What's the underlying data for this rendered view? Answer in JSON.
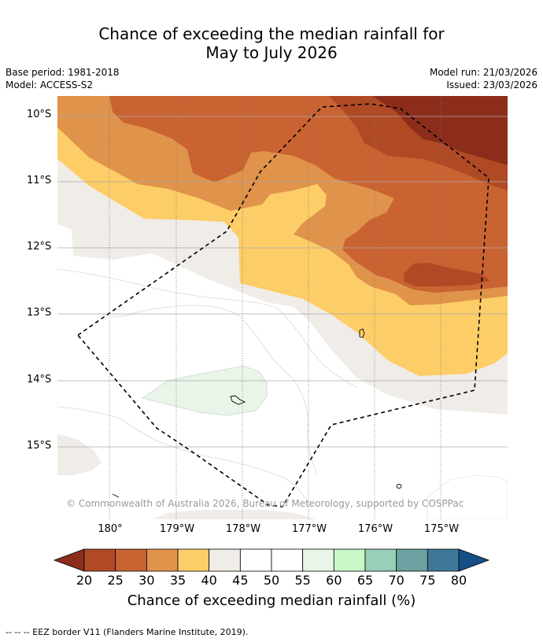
{
  "title_line1": "Chance of exceeding the median rainfall for",
  "title_line2": "May to July 2026",
  "meta": {
    "base_period": "Base period: 1981-2018",
    "model": "Model: ACCESS-S2",
    "model_run": "Model run: 21/03/2026",
    "issued": "Issued: 23/03/2026"
  },
  "axes": {
    "lat_labels": [
      "10°S",
      "11°S",
      "12°S",
      "13°S",
      "14°S",
      "15°S"
    ],
    "lon_labels": [
      "180°",
      "179°W",
      "178°W",
      "177°W",
      "176°W",
      "175°W"
    ]
  },
  "attribution": "© Commonwealth of Australia 2026, Bureau of Meteorology, supported by COSPPac",
  "colorbar": {
    "label": "Chance of exceeding median rainfall (%)",
    "ticks": [
      "20",
      "25",
      "30",
      "35",
      "40",
      "45",
      "50",
      "55",
      "60",
      "65",
      "70",
      "75",
      "80"
    ],
    "colors": [
      "#8c2d1b",
      "#b04a25",
      "#c96332",
      "#e0934a",
      "#fdcd68",
      "#f0ece7",
      "#ffffff",
      "#ffffff",
      "#eaf5e9",
      "#c8f8c8",
      "#97cfb7",
      "#6ba1a1",
      "#3e7797",
      "#164f85"
    ]
  },
  "legend_footer": "--  --  -- EEZ border V11 (Flanders Marine Institute, 2019)."
}
